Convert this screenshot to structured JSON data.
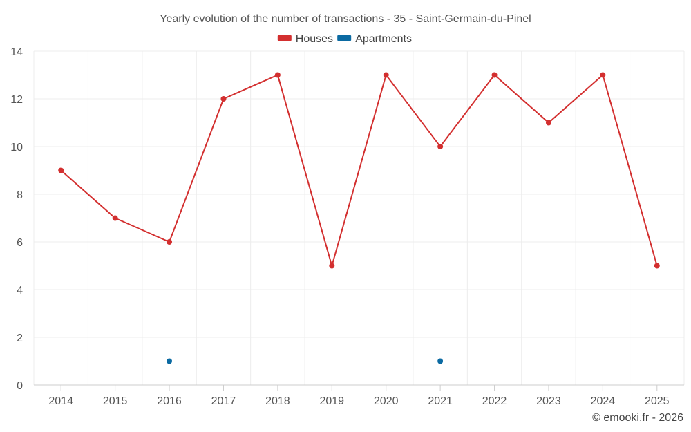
{
  "chart_data": {
    "type": "line",
    "title": "Yearly evolution of the number of transactions - 35 - Saint-Germain-du-Pinel",
    "xlabel": "",
    "ylabel": "",
    "categories": [
      "2014",
      "2015",
      "2016",
      "2017",
      "2018",
      "2019",
      "2020",
      "2021",
      "2022",
      "2023",
      "2024",
      "2025"
    ],
    "ylim": [
      0,
      14
    ],
    "yticks": [
      0,
      2,
      4,
      6,
      8,
      10,
      12,
      14
    ],
    "grid": true,
    "legend_position": "top-center",
    "series": [
      {
        "name": "Houses",
        "color": "#d32f2f",
        "values": [
          9,
          7,
          6,
          12,
          13,
          5,
          13,
          10,
          13,
          11,
          13,
          5
        ]
      },
      {
        "name": "Apartments",
        "color": "#0b6aa2",
        "values": [
          null,
          null,
          1,
          null,
          null,
          null,
          null,
          1,
          null,
          null,
          null,
          null
        ]
      }
    ]
  },
  "credit": "© emooki.fr - 2026"
}
